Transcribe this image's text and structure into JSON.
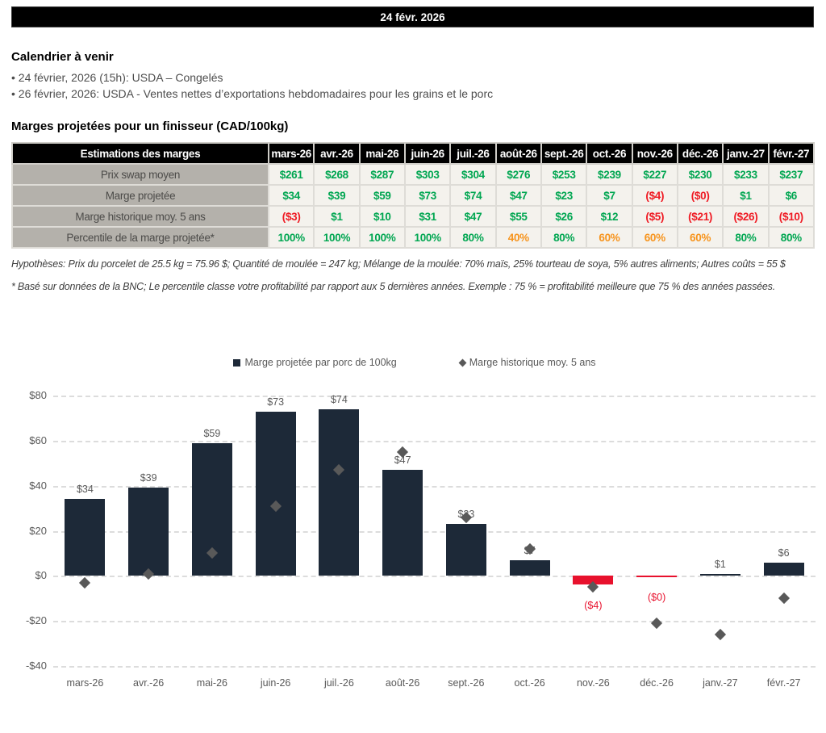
{
  "header": {
    "date_banner": "24 févr. 2026"
  },
  "calendar": {
    "title": "Calendrier à venir",
    "items": [
      "• 24 février, 2026 (15h): USDA – Congelés",
      "• 26 février, 2026: USDA - Ventes nettes d’exportations hebdomadaires pour les grains et le porc"
    ]
  },
  "table": {
    "title": "Marges projetées pour un finisseur (CAD/100kg)",
    "corner_header": "Estimations des marges",
    "columns": [
      "mars-26",
      "avr.-26",
      "mai-26",
      "juin-26",
      "juil.-26",
      "août-26",
      "sept.-26",
      "oct.-26",
      "nov.-26",
      "déc.-26",
      "janv.-27",
      "févr.-27"
    ],
    "rows": [
      {
        "label": "Prix swap moyen",
        "values": [
          "$261",
          "$268",
          "$287",
          "$303",
          "$304",
          "$276",
          "$253",
          "$239",
          "$227",
          "$230",
          "$233",
          "$237"
        ],
        "colors": [
          "g",
          "g",
          "g",
          "g",
          "g",
          "g",
          "g",
          "g",
          "g",
          "g",
          "g",
          "g"
        ]
      },
      {
        "label": "Marge projetée",
        "values": [
          "$34",
          "$39",
          "$59",
          "$73",
          "$74",
          "$47",
          "$23",
          "$7",
          "($4)",
          "($0)",
          "$1",
          "$6"
        ],
        "colors": [
          "g",
          "g",
          "g",
          "g",
          "g",
          "g",
          "g",
          "g",
          "r",
          "r",
          "g",
          "g"
        ]
      },
      {
        "label": "Marge historique moy. 5 ans",
        "values": [
          "($3)",
          "$1",
          "$10",
          "$31",
          "$47",
          "$55",
          "$26",
          "$12",
          "($5)",
          "($21)",
          "($26)",
          "($10)"
        ],
        "colors": [
          "r",
          "g",
          "g",
          "g",
          "g",
          "g",
          "g",
          "g",
          "r",
          "r",
          "r",
          "r"
        ]
      },
      {
        "label": "Percentile de la marge projetée*",
        "values": [
          "100%",
          "100%",
          "100%",
          "100%",
          "80%",
          "40%",
          "80%",
          "60%",
          "60%",
          "60%",
          "80%",
          "80%"
        ],
        "colors": [
          "g",
          "g",
          "g",
          "g",
          "g",
          "o",
          "g",
          "o",
          "o",
          "o",
          "g",
          "g"
        ]
      }
    ],
    "value_colors": {
      "g": "#00a651",
      "r": "#ef1a23",
      "o": "#f7941d"
    }
  },
  "footnotes": [
    "Hypothèses: Prix du porcelet de 25.5 kg = 75.96 $; Quantité de moulée = 247 kg; Mélange de la moulée: 70% maïs, 25% tourteau de soya, 5% autres aliments; Autres coûts = 55 $",
    "* Basé sur données de la BNC; Le percentile classe votre profitabilité par rapport aux 5 dernières années. Exemple : 75 % = profitabilité meilleure que 75 % des années passées."
  ],
  "chart_data": {
    "type": "bar",
    "title": "",
    "categories": [
      "mars-26",
      "avr.-26",
      "mai-26",
      "juin-26",
      "juil.-26",
      "août-26",
      "sept.-26",
      "oct.-26",
      "nov.-26",
      "déc.-26",
      "janv.-27",
      "févr.-27"
    ],
    "series": [
      {
        "name": "Marge projetée par porc de 100kg",
        "type": "bar",
        "values": [
          34,
          39,
          59,
          73,
          74,
          47,
          23,
          7,
          -4,
          0,
          1,
          6
        ],
        "labels": [
          "$34",
          "$39",
          "$59",
          "$73",
          "$74",
          "$47",
          "$23",
          "$7",
          "($4)",
          "($0)",
          "$1",
          "$6"
        ],
        "bar_colors": [
          "n",
          "n",
          "n",
          "n",
          "n",
          "n",
          "n",
          "n",
          "r",
          "r",
          "n",
          "n"
        ]
      },
      {
        "name": "Marge historique moy. 5 ans",
        "type": "scatter",
        "values": [
          -3,
          1,
          10,
          31,
          47,
          55,
          26,
          12,
          -5,
          -21,
          -26,
          -10
        ]
      }
    ],
    "ylim": [
      -40,
      80
    ],
    "yticks": [
      {
        "label": "$80",
        "value": 80
      },
      {
        "label": "$60",
        "value": 60
      },
      {
        "label": "$40",
        "value": 40
      },
      {
        "label": "$20",
        "value": 20
      },
      {
        "label": "$0",
        "value": 0
      },
      {
        "label": "-$20",
        "value": -20
      },
      {
        "label": "-$40",
        "value": -40
      }
    ],
    "grid": "dashed horizontal",
    "legend_position": "top center",
    "colors": {
      "bar": "#1d2938",
      "bar_negative": "#e8112d",
      "marker": "#595959",
      "label": "#595959",
      "label_negative": "#e8112d"
    }
  }
}
